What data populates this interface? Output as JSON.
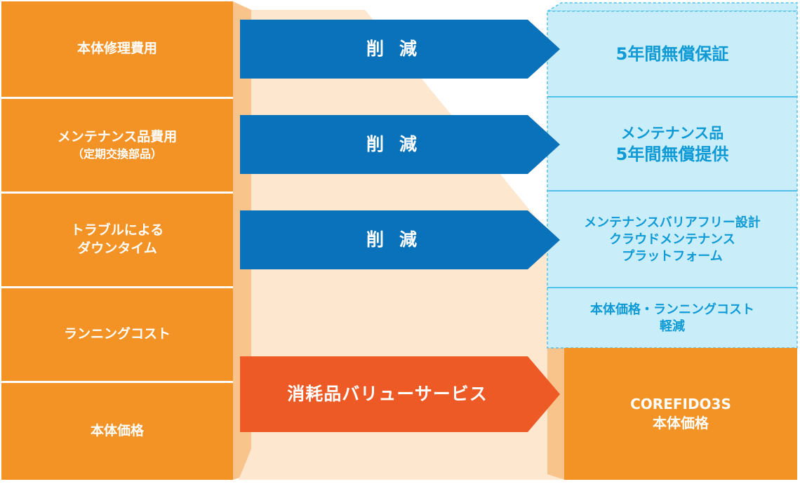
{
  "colors": {
    "orange": "#f39325",
    "orange_light": "#f9c48c",
    "orange_pale": "#fde7cf",
    "blue_arrow": "#0a72bb",
    "red_arrow": "#ed5a26",
    "cyan_fill": "#c9eefa",
    "cyan_line": "#52c2ec",
    "cyan_text": "#0f9ad6"
  },
  "left_column": [
    {
      "lines": [
        "本体修理費用"
      ]
    },
    {
      "lines": [
        "メンテナンス品費用",
        "（定期交換部品）"
      ]
    },
    {
      "lines": [
        "トラブルによる",
        "ダウンタイム"
      ]
    },
    {
      "lines": [
        "ランニングコスト"
      ]
    },
    {
      "lines": [
        "本体価格"
      ]
    }
  ],
  "arrows": [
    {
      "label": "削減",
      "kind": "reduce"
    },
    {
      "label": "削減",
      "kind": "reduce"
    },
    {
      "label": "削減",
      "kind": "reduce"
    },
    {
      "label": "消耗品バリューサービス",
      "kind": "service"
    }
  ],
  "right_column": [
    {
      "lines": [
        "5年間無償保証"
      ]
    },
    {
      "lines": [
        "メンテナンス品",
        "5年間無償提供"
      ]
    },
    {
      "lines": [
        "メンテナンスバリアフリー設計",
        "クラウドメンテナンス",
        "プラットフォーム"
      ]
    },
    {
      "lines": [
        "本体価格・ランニングコスト",
        "軽減"
      ]
    },
    {
      "lines": [
        "COREFIDO3S",
        "本体価格"
      ]
    }
  ]
}
